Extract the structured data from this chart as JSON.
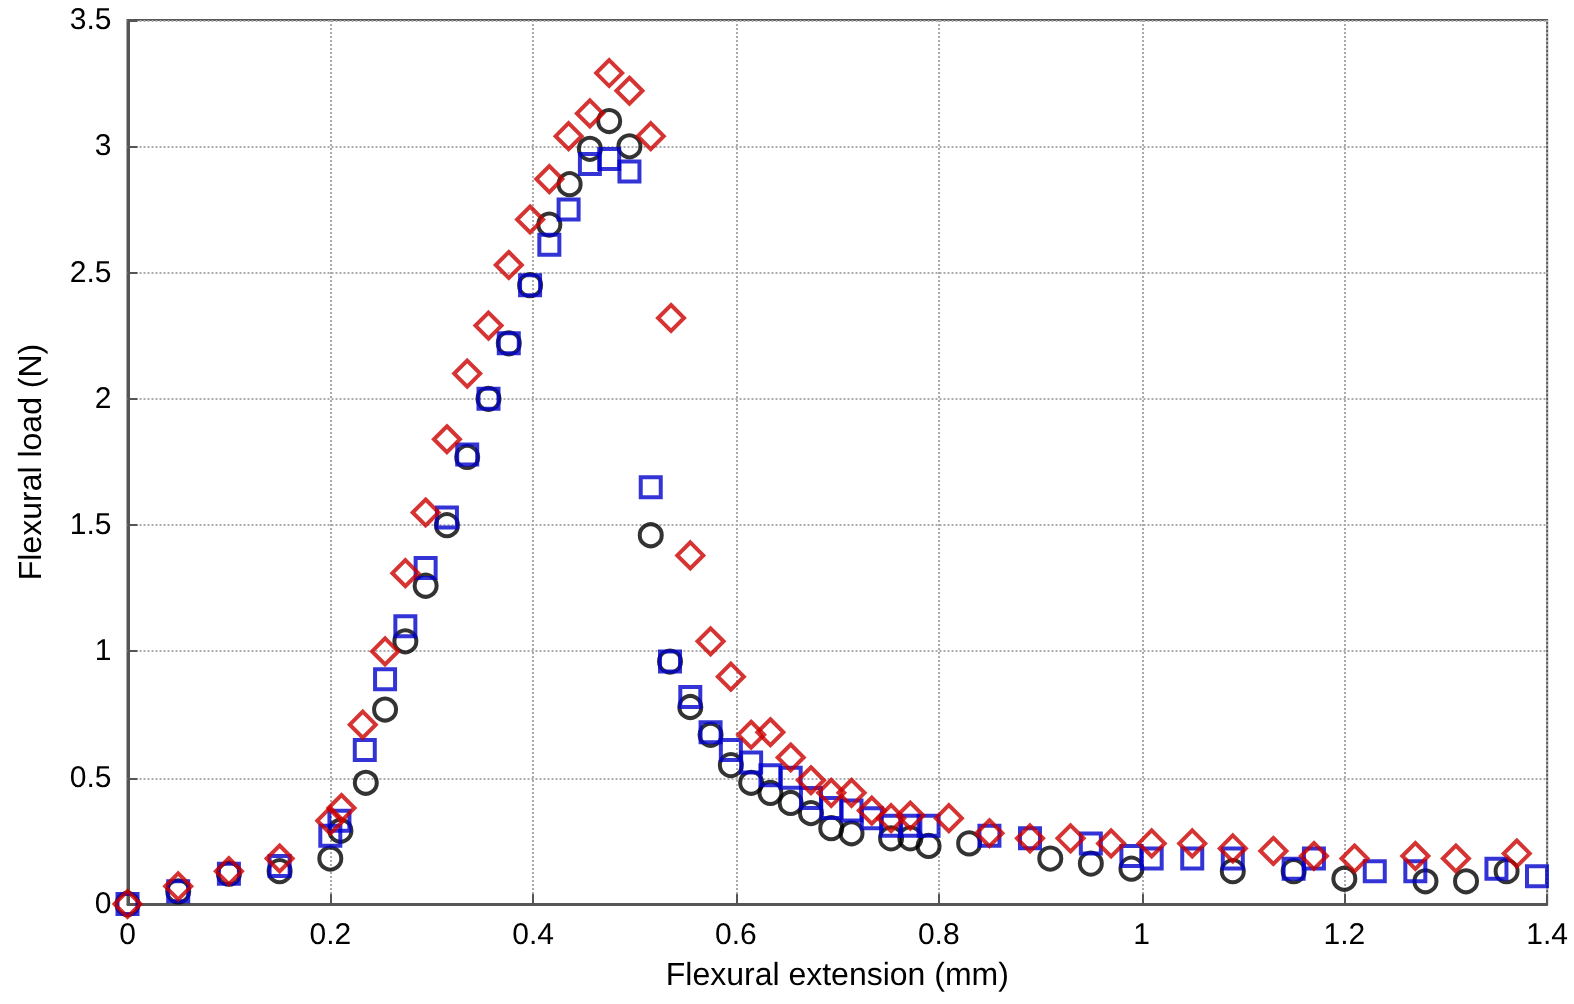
{
  "chart_data": {
    "type": "scatter",
    "xlabel": "Flexural extension (mm)",
    "ylabel": "Flexural load (N)",
    "xlim": [
      0,
      1.4
    ],
    "ylim": [
      0,
      3.5
    ],
    "xticks": [
      0,
      0.2,
      0.4,
      0.6,
      0.8,
      1,
      1.2,
      1.4
    ],
    "yticks": [
      0,
      0.5,
      1,
      1.5,
      2,
      2.5,
      3,
      3.5
    ],
    "grid": true,
    "series": [
      {
        "color": "#000000",
        "marker": "circle",
        "x": [
          0,
          0.05,
          0.1,
          0.15,
          0.2,
          0.21,
          0.235,
          0.254,
          0.274,
          0.294,
          0.315,
          0.335,
          0.356,
          0.376,
          0.397,
          0.416,
          0.436,
          0.456,
          0.475,
          0.495,
          0.516,
          0.535,
          0.555,
          0.575,
          0.595,
          0.615,
          0.634,
          0.654,
          0.674,
          0.694,
          0.714,
          0.753,
          0.772,
          0.79,
          0.83,
          0.91,
          0.95,
          0.99,
          1.09,
          1.15,
          1.2,
          1.28,
          1.32,
          1.36
        ],
        "values": [
          0,
          0.05,
          0.12,
          0.13,
          0.18,
          0.29,
          0.48,
          0.77,
          1.04,
          1.26,
          1.5,
          1.77,
          2.0,
          2.22,
          2.45,
          2.69,
          2.85,
          2.99,
          3.1,
          3.0,
          1.46,
          0.96,
          0.78,
          0.67,
          0.55,
          0.48,
          0.44,
          0.4,
          0.36,
          0.3,
          0.28,
          0.26,
          0.26,
          0.23,
          0.24,
          0.18,
          0.16,
          0.14,
          0.13,
          0.13,
          0.1,
          0.09,
          0.09,
          0.13
        ]
      },
      {
        "color": "#0000cc",
        "marker": "square",
        "x": [
          0,
          0.05,
          0.1,
          0.15,
          0.2,
          0.209,
          0.234,
          0.254,
          0.274,
          0.294,
          0.315,
          0.335,
          0.356,
          0.376,
          0.397,
          0.416,
          0.435,
          0.456,
          0.475,
          0.495,
          0.516,
          0.535,
          0.555,
          0.575,
          0.595,
          0.615,
          0.634,
          0.654,
          0.674,
          0.694,
          0.714,
          0.734,
          0.753,
          0.772,
          0.79,
          0.85,
          0.89,
          0.95,
          0.99,
          1.01,
          1.05,
          1.09,
          1.15,
          1.17,
          1.23,
          1.27,
          1.35,
          1.39
        ],
        "values": [
          0,
          0.05,
          0.12,
          0.15,
          0.27,
          0.33,
          0.61,
          0.89,
          1.1,
          1.33,
          1.53,
          1.78,
          2.0,
          2.22,
          2.45,
          2.61,
          2.75,
          2.93,
          2.95,
          2.9,
          1.65,
          0.96,
          0.82,
          0.68,
          0.61,
          0.56,
          0.51,
          0.5,
          0.42,
          0.38,
          0.37,
          0.34,
          0.31,
          0.31,
          0.31,
          0.27,
          0.26,
          0.24,
          0.19,
          0.18,
          0.18,
          0.18,
          0.14,
          0.18,
          0.13,
          0.13,
          0.14,
          0.11
        ]
      },
      {
        "color": "#cc0000",
        "marker": "diamond",
        "x": [
          0,
          0.05,
          0.1,
          0.15,
          0.2,
          0.211,
          0.232,
          0.254,
          0.274,
          0.294,
          0.315,
          0.335,
          0.356,
          0.376,
          0.397,
          0.416,
          0.435,
          0.456,
          0.475,
          0.495,
          0.516,
          0.536,
          0.555,
          0.575,
          0.595,
          0.615,
          0.634,
          0.654,
          0.674,
          0.694,
          0.714,
          0.734,
          0.753,
          0.772,
          0.81,
          0.85,
          0.89,
          0.93,
          0.97,
          1.01,
          1.05,
          1.09,
          1.13,
          1.17,
          1.21,
          1.27,
          1.31,
          1.37
        ],
        "values": [
          0,
          0.07,
          0.13,
          0.18,
          0.33,
          0.38,
          0.71,
          1.0,
          1.31,
          1.55,
          1.84,
          2.1,
          2.29,
          2.53,
          2.71,
          2.87,
          3.04,
          3.13,
          3.29,
          3.22,
          3.04,
          2.32,
          1.38,
          1.04,
          0.9,
          0.67,
          0.68,
          0.58,
          0.49,
          0.44,
          0.44,
          0.37,
          0.34,
          0.35,
          0.34,
          0.28,
          0.26,
          0.26,
          0.24,
          0.24,
          0.24,
          0.22,
          0.21,
          0.19,
          0.18,
          0.19,
          0.18,
          0.2
        ]
      }
    ]
  }
}
